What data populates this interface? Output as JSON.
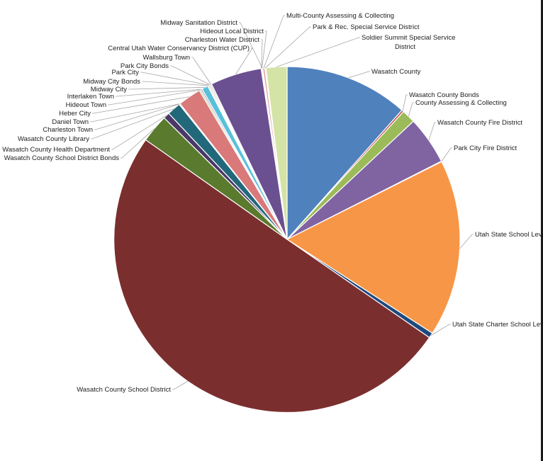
{
  "chart_data": {
    "type": "pie",
    "title": "",
    "start_angle_deg": 0,
    "direction": "clockwise",
    "slices": [
      {
        "label": "Wasatch County",
        "value": 11.8,
        "color": "#4f81bd"
      },
      {
        "label": "Wasatch County Bonds",
        "value": 0.2,
        "color": "#c0504d"
      },
      {
        "label": "County Assessing & Collecting",
        "value": 1.3,
        "color": "#9bbb59"
      },
      {
        "label": "Wasatch County Fire District",
        "value": 4.6,
        "color": "#8064a2"
      },
      {
        "label": "Park City Fire District",
        "value": 0.05,
        "color": "#4bacc6"
      },
      {
        "label": "Utah State School Levy",
        "value": 16.9,
        "color": "#f79646"
      },
      {
        "label": "Utah State Charter School Levy",
        "value": 0.5,
        "color": "#1f497d"
      },
      {
        "label": "Wasatch County School District",
        "value": 51.2,
        "color": "#7b2e2e"
      },
      {
        "label": "Wasatch County School District Bonds",
        "value": 2.7,
        "color": "#5a7a2e"
      },
      {
        "label": "Wasatch County Health Department",
        "value": 0.6,
        "color": "#4a3868"
      },
      {
        "label": "Wasatch County Library",
        "value": 1.3,
        "color": "#21687a"
      },
      {
        "label": "Charleston Town",
        "value": 0.05,
        "color": "#c0504d"
      },
      {
        "label": "Daniel Town",
        "value": 0.05,
        "color": "#f0a030"
      },
      {
        "label": "Heber City",
        "value": 2.2,
        "color": "#d9797a"
      },
      {
        "label": "Hideout Town",
        "value": 0.15,
        "color": "#b8cf83"
      },
      {
        "label": "Interlaken Town",
        "value": 0.15,
        "color": "#a795c4"
      },
      {
        "label": "Midway City",
        "value": 0.6,
        "color": "#5ac0da"
      },
      {
        "label": "Midway City Bonds",
        "value": 0.1,
        "color": "#f8b06a"
      },
      {
        "label": "Park City",
        "value": 0.1,
        "color": "#2d5f92"
      },
      {
        "label": "Park City Bonds",
        "value": 0.1,
        "color": "#9c3533"
      },
      {
        "label": "Wallsburg Town",
        "value": 0.1,
        "color": "#718f3c"
      },
      {
        "label": "Central Utah Water Conservancy District (CUP)",
        "value": 4.9,
        "color": "#6a5090"
      },
      {
        "label": "Charleston Water District",
        "value": 0.05,
        "color": "#2b8499"
      },
      {
        "label": "Hideout Local District",
        "value": 0.05,
        "color": "#d9883c"
      },
      {
        "label": "Midway Sanitation District",
        "value": 0.05,
        "color": "#6a8dbd"
      },
      {
        "label": "Multi-County Assessing & Collecting",
        "value": 0.2,
        "color": "#e3a3a3"
      },
      {
        "label": "Park & Rec. Special Service District",
        "value": 0.1,
        "color": "#d7e4bd"
      },
      {
        "label": "Soldier Summit Special Service District",
        "value": 2.0,
        "color": "#d4e3a6"
      }
    ]
  }
}
